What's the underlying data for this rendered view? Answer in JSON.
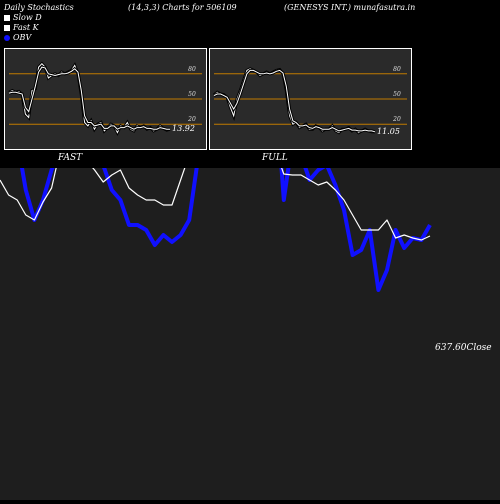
{
  "header": {
    "title": "Daily Stochastics",
    "params": "(14,3,3) Charts for 506109",
    "company": "(GENESYS INT.) munafasutra.in"
  },
  "legend": [
    {
      "label": "Slow  D",
      "color": "#ffffff",
      "shape": "square"
    },
    {
      "label": "Fast K",
      "color": "#ffffff",
      "shape": "square"
    },
    {
      "label": "OBV",
      "color": "#1010ff",
      "shape": "circle"
    }
  ],
  "chart_data": [
    {
      "type": "line",
      "title": "FAST",
      "ylim": [
        0,
        100
      ],
      "levels": [
        20,
        50,
        80
      ],
      "level_labels": [
        "20",
        "50",
        "80"
      ],
      "last_value": "13.92",
      "series": [
        {
          "name": "Fast K",
          "values": [
            58,
            60,
            58,
            59,
            55,
            32,
            28,
            60,
            62,
            88,
            92,
            88,
            75,
            78,
            80,
            78,
            82,
            80,
            82,
            84,
            90,
            80,
            55,
            22,
            18,
            24,
            14,
            20,
            22,
            12,
            16,
            20,
            18,
            10,
            18,
            16,
            22,
            14,
            12,
            18,
            16,
            18,
            14,
            16,
            12,
            14,
            18,
            15,
            13,
            14
          ]
        },
        {
          "name": "Slow D",
          "values": [
            57,
            58,
            58,
            57,
            56,
            40,
            35,
            50,
            65,
            82,
            88,
            87,
            80,
            79,
            78,
            79,
            80,
            80,
            81,
            83,
            86,
            82,
            60,
            30,
            22,
            22,
            18,
            19,
            20,
            15,
            15,
            18,
            18,
            14,
            16,
            16,
            18,
            16,
            14,
            16,
            16,
            17,
            15,
            15,
            14,
            14,
            16,
            15,
            14,
            14
          ]
        }
      ]
    },
    {
      "type": "line",
      "title": "FULL",
      "ylim": [
        0,
        100
      ],
      "levels": [
        20,
        50,
        80
      ],
      "level_labels": [
        "20",
        "50",
        "80"
      ],
      "last_value": "11.05",
      "series": [
        {
          "name": "Fast K",
          "values": [
            55,
            58,
            56,
            55,
            52,
            40,
            30,
            50,
            60,
            72,
            84,
            86,
            84,
            82,
            78,
            80,
            82,
            80,
            82,
            84,
            85,
            80,
            60,
            30,
            20,
            22,
            16,
            18,
            20,
            14,
            14,
            18,
            16,
            12,
            14,
            14,
            18,
            12,
            10,
            14,
            14,
            16,
            12,
            14,
            10,
            12,
            14,
            12,
            11,
            11
          ]
        },
        {
          "name": "Slow D",
          "values": [
            54,
            56,
            56,
            54,
            52,
            45,
            38,
            45,
            56,
            68,
            80,
            84,
            84,
            82,
            80,
            80,
            81,
            80,
            81,
            83,
            84,
            81,
            65,
            38,
            24,
            22,
            18,
            18,
            19,
            16,
            15,
            17,
            16,
            14,
            14,
            14,
            16,
            14,
            12,
            13,
            14,
            15,
            13,
            13,
            12,
            12,
            13,
            12,
            12,
            11
          ]
        }
      ]
    },
    {
      "type": "line",
      "title": "",
      "last_value": "637.60",
      "last_label": "Close",
      "series": [
        {
          "name": "OBV",
          "values": [
            430,
            375,
            360,
            310,
            280,
            300,
            330,
            350,
            420,
            385,
            370,
            345,
            335,
            310,
            300,
            275,
            275,
            270,
            255,
            265,
            258,
            265,
            280,
            340,
            345,
            355,
            400,
            390,
            395,
            420,
            450,
            420,
            420,
            300,
            360,
            345,
            320,
            330,
            335,
            315,
            290,
            245,
            250,
            270,
            210,
            230,
            270,
            252,
            262,
            260,
            275
          ]
        },
        {
          "name": "Close",
          "values": [
            320,
            305,
            300,
            285,
            280,
            298,
            312,
            350,
            358,
            345,
            340,
            330,
            318,
            325,
            330,
            312,
            305,
            300,
            300,
            295,
            295,
            320,
            345,
            350,
            342,
            348,
            354,
            335,
            345,
            345,
            356,
            352,
            350,
            326,
            325,
            325,
            320,
            315,
            318,
            310,
            300,
            285,
            270,
            270,
            270,
            280,
            262,
            265,
            262,
            260,
            264
          ]
        }
      ]
    }
  ]
}
